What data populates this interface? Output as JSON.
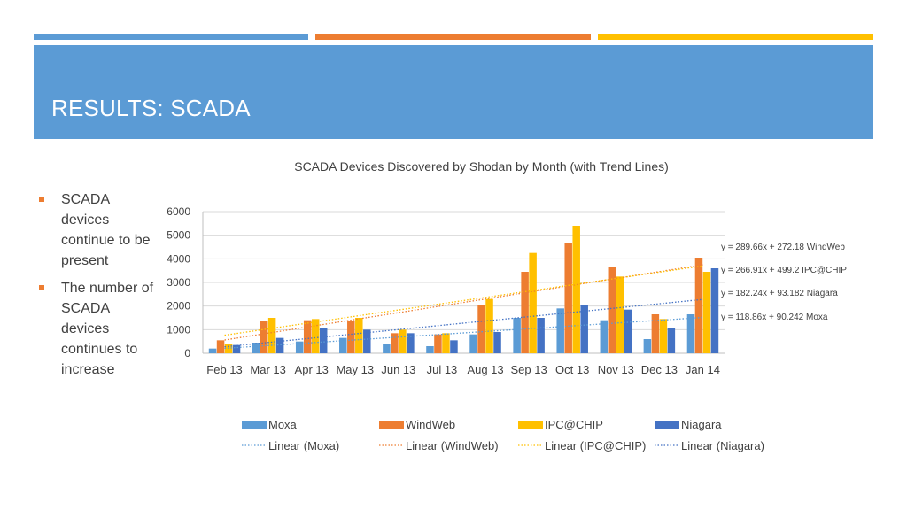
{
  "slide": {
    "title": "RESULTS: SCADA",
    "bullets": [
      "SCADA devices continue to be present",
      "The number of SCADA devices continues to increase"
    ],
    "colors": {
      "stripe_blue": "#5b9bd5",
      "stripe_orange": "#ed7d31",
      "stripe_yellow": "#ffc000",
      "title_band": "#5b9bd5",
      "bullet": "#ed7d31"
    }
  },
  "chart_data": {
    "type": "bar",
    "title": "SCADA Devices Discovered by Shodan by Month (with Trend Lines)",
    "xlabel": "",
    "ylabel": "",
    "ylim": [
      0,
      6000
    ],
    "yticks": [
      0,
      1000,
      2000,
      3000,
      4000,
      5000,
      6000
    ],
    "grid": true,
    "legend_position": "bottom",
    "categories": [
      "Feb 13",
      "Mar 13",
      "Apr 13",
      "May 13",
      "Jun 13",
      "Jul 13",
      "Aug 13",
      "Sep 13",
      "Oct 13",
      "Nov 13",
      "Dec 13",
      "Jan 14"
    ],
    "series": [
      {
        "name": "Moxa",
        "color": "#5b9bd5",
        "values": [
          200,
          450,
          500,
          650,
          400,
          300,
          800,
          1500,
          1900,
          1400,
          600,
          1650
        ]
      },
      {
        "name": "WindWeb",
        "color": "#ed7d31",
        "values": [
          550,
          1350,
          1400,
          1350,
          850,
          800,
          2050,
          3450,
          4650,
          3650,
          1650,
          4050
        ]
      },
      {
        "name": "IPC@CHIP",
        "color": "#ffc000",
        "values": [
          400,
          1500,
          1450,
          1500,
          1000,
          850,
          2300,
          4250,
          5400,
          3250,
          1450,
          3450
        ]
      },
      {
        "name": "Niagara",
        "color": "#4472c4",
        "values": [
          350,
          650,
          1050,
          1000,
          850,
          550,
          900,
          1500,
          2050,
          1850,
          1050,
          3600
        ]
      }
    ],
    "trendlines": [
      {
        "name": "Linear (Moxa)",
        "series": "Moxa",
        "slope": 118.86,
        "intercept": 90.242,
        "label": "y = 118.86x + 90.242 Moxa"
      },
      {
        "name": "Linear (WindWeb)",
        "series": "WindWeb",
        "slope": 289.66,
        "intercept": 272.18,
        "label": "y = 289.66x + 272.18 WindWeb"
      },
      {
        "name": "Linear (IPC@CHIP)",
        "series": "IPC@CHIP",
        "slope": 266.91,
        "intercept": 499.2,
        "label": "y = 266.91x + 499.2 IPC@CHIP"
      },
      {
        "name": "Linear (Niagara)",
        "series": "Niagara",
        "slope": 182.24,
        "intercept": 93.182,
        "label": "y = 182.24x + 93.182 Niagara"
      }
    ]
  }
}
